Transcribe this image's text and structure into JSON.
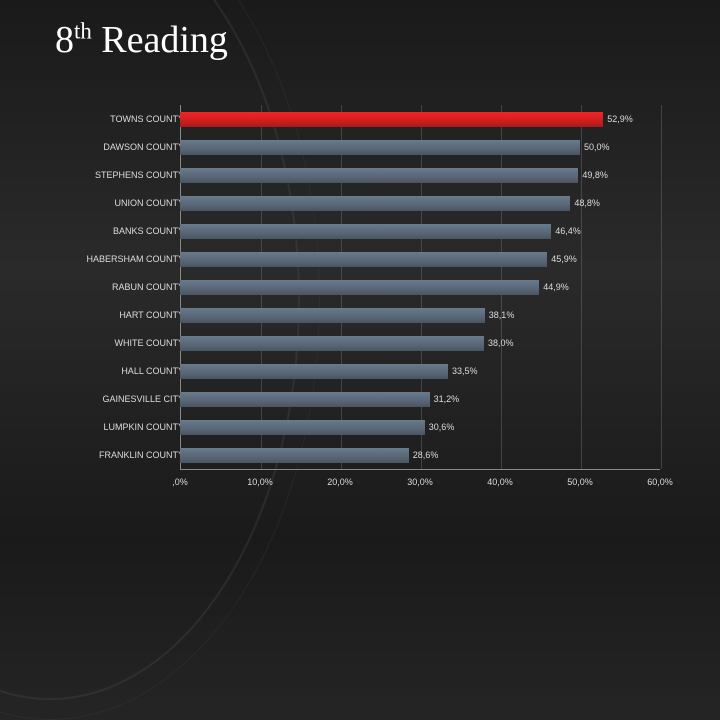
{
  "title_pre": "8",
  "title_sup": "th",
  "title_post": " Reading",
  "title_fontsize": 38,
  "chart": {
    "type": "bar",
    "orientation": "horizontal",
    "x_min": 0,
    "x_max": 60,
    "x_tick_step": 10,
    "x_tick_labels": [
      ",0%",
      "10,0%",
      "20,0%",
      "30,0%",
      "40,0%",
      "50,0%",
      "60,0%"
    ],
    "background_color": "transparent",
    "grid_color": "#888888",
    "axis_color": "#888888",
    "label_color": "#dddddd",
    "label_fontsize": 9,
    "default_bar_color": "#5b6a7a",
    "bars": [
      {
        "name": "TOWNS COUNTY",
        "value": 52.9,
        "label": "52,9%",
        "color": "#d42020"
      },
      {
        "name": "DAWSON COUNTY",
        "value": 50.0,
        "label": "50,0%",
        "color": "#5b6a7a"
      },
      {
        "name": "STEPHENS COUNTY",
        "value": 49.8,
        "label": "49,8%",
        "color": "#5b6a7a"
      },
      {
        "name": "UNION COUNTY",
        "value": 48.8,
        "label": "48,8%",
        "color": "#5b6a7a"
      },
      {
        "name": "BANKS COUNTY",
        "value": 46.4,
        "label": "46,4%",
        "color": "#5b6a7a"
      },
      {
        "name": "HABERSHAM COUNTY",
        "value": 45.9,
        "label": "45,9%",
        "color": "#5b6a7a"
      },
      {
        "name": "RABUN COUNTY",
        "value": 44.9,
        "label": "44,9%",
        "color": "#5b6a7a"
      },
      {
        "name": "HART COUNTY",
        "value": 38.1,
        "label": "38,1%",
        "color": "#5b6a7a"
      },
      {
        "name": "WHITE COUNTY",
        "value": 38.0,
        "label": "38,0%",
        "color": "#5b6a7a"
      },
      {
        "name": "HALL COUNTY",
        "value": 33.5,
        "label": "33,5%",
        "color": "#5b6a7a"
      },
      {
        "name": "GAINESVILLE CITY",
        "value": 31.2,
        "label": "31,2%",
        "color": "#5b6a7a"
      },
      {
        "name": "LUMPKIN COUNTY",
        "value": 30.6,
        "label": "30,6%",
        "color": "#5b6a7a"
      },
      {
        "name": "FRANKLIN COUNTY",
        "value": 28.6,
        "label": "28,6%",
        "color": "#5b6a7a"
      }
    ]
  }
}
